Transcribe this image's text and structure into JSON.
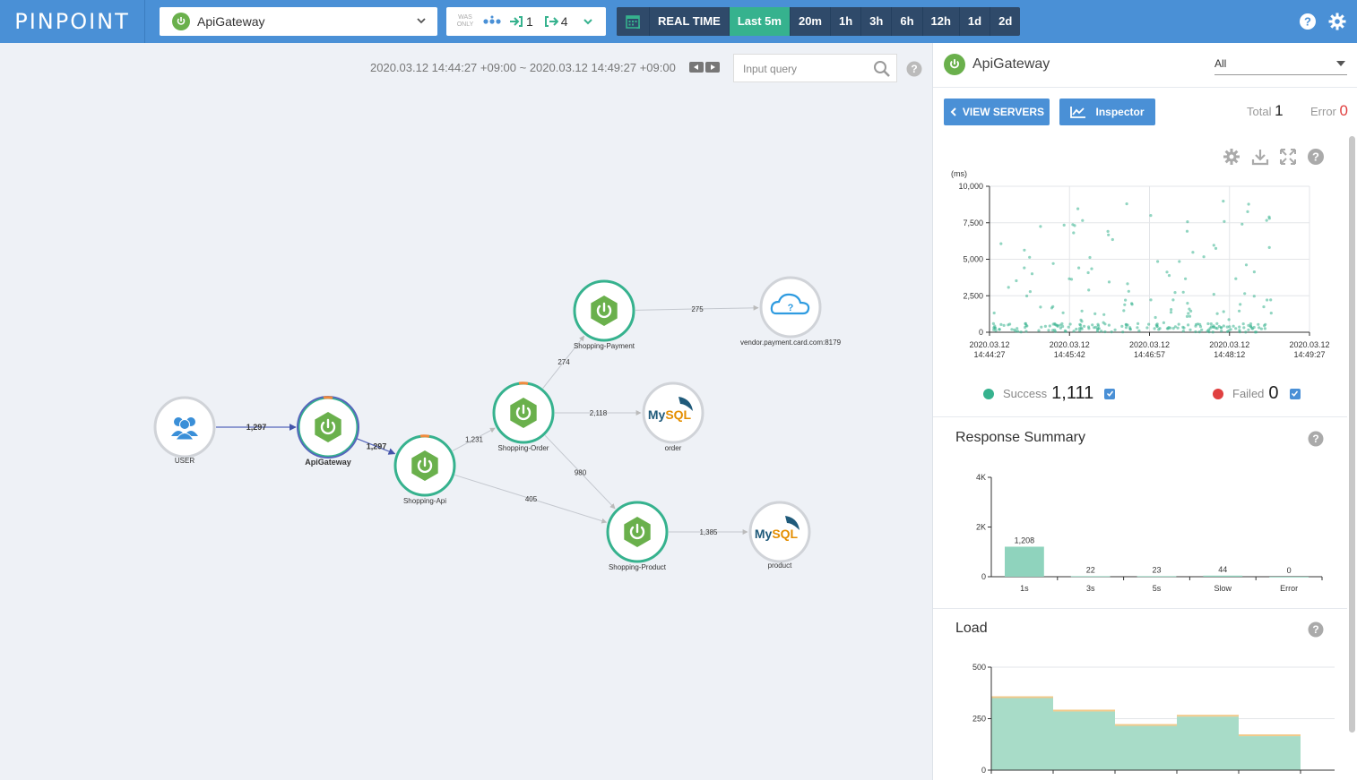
{
  "header": {
    "logo": "PINPOINT",
    "application": "ApiGateway",
    "was_only": "WAS ONLY",
    "inbound_count": "1",
    "outbound_count": "4",
    "time_buttons": [
      "REAL TIME",
      "Last 5m",
      "20m",
      "1h",
      "3h",
      "6h",
      "12h",
      "1d",
      "2d"
    ],
    "active_time": "Last 5m"
  },
  "map": {
    "time_range": "2020.03.12 14:44:27 +09:00 ~ 2020.03.12 14:49:27 +09:00",
    "query_placeholder": "Input query",
    "nodes": [
      {
        "id": "user",
        "label": "USER",
        "type": "user"
      },
      {
        "id": "gw",
        "label": "ApiGateway",
        "type": "spring"
      },
      {
        "id": "api",
        "label": "Shopping-Api",
        "type": "spring"
      },
      {
        "id": "order",
        "label": "Shopping-Order",
        "type": "spring"
      },
      {
        "id": "pay",
        "label": "Shopping-Payment",
        "type": "spring"
      },
      {
        "id": "prod",
        "label": "Shopping-Product",
        "type": "spring"
      },
      {
        "id": "vendor",
        "label": "vendor.payment.card.com:8179",
        "type": "cloud"
      },
      {
        "id": "dborder",
        "label": "order",
        "type": "mysql"
      },
      {
        "id": "dbprod",
        "label": "product",
        "type": "mysql"
      }
    ],
    "edges": [
      {
        "from": "user",
        "to": "gw",
        "count": "1,297"
      },
      {
        "from": "gw",
        "to": "api",
        "count": "1,297"
      },
      {
        "from": "api",
        "to": "order",
        "count": "1,231"
      },
      {
        "from": "api",
        "to": "prod",
        "count": "405"
      },
      {
        "from": "order",
        "to": "pay",
        "count": "274"
      },
      {
        "from": "order",
        "to": "dborder",
        "count": "2,118"
      },
      {
        "from": "order",
        "to": "prod",
        "count": "980"
      },
      {
        "from": "pay",
        "to": "vendor",
        "count": "275"
      },
      {
        "from": "prod",
        "to": "dbprod",
        "count": "1,385"
      }
    ],
    "mysql_text": "MySQL",
    "cloud_mark": "?"
  },
  "panel": {
    "title": "ApiGateway",
    "agent_filter": "All",
    "view_servers": "VIEW SERVERS",
    "inspector": "Inspector",
    "total_label": "Total",
    "total_value": "1",
    "error_label": "Error",
    "error_value": "0",
    "success_label": "Success",
    "success_value": "1,111",
    "failed_label": "Failed",
    "failed_value": "0",
    "response_title": "Response Summary",
    "load_title": "Load"
  },
  "colors": {
    "brand": "#4a90d6",
    "success": "#36b28e",
    "failed": "#e04040",
    "spring": "#6ab04c"
  },
  "chart_data": [
    {
      "type": "scatter",
      "ylabel": "(ms)",
      "ylim": [
        0,
        10000
      ],
      "yticks": [
        "10,000",
        "7,500",
        "5,000",
        "2,500",
        "0"
      ],
      "xticks": [
        [
          "2020.03.12",
          "14:44:27"
        ],
        [
          "2020.03.12",
          "14:45:42"
        ],
        [
          "2020.03.12",
          "14:46:57"
        ],
        [
          "2020.03.12",
          "14:48:12"
        ],
        [
          "2020.03.12",
          "14:49:27"
        ]
      ],
      "grid": true
    },
    {
      "type": "bar",
      "categories": [
        "1s",
        "3s",
        "5s",
        "Slow",
        "Error"
      ],
      "values": [
        1208,
        22,
        23,
        44,
        0
      ],
      "value_labels": [
        "1,208",
        "22",
        "23",
        "44",
        "0"
      ],
      "yticks": [
        "4K",
        "2K",
        "0"
      ],
      "ylim": [
        0,
        4000
      ]
    },
    {
      "type": "area",
      "yticks": [
        "500",
        "250",
        "0"
      ],
      "ylim": [
        0,
        500
      ],
      "series": [
        {
          "values": [
            350,
            285,
            215,
            260,
            165
          ]
        }
      ]
    }
  ]
}
